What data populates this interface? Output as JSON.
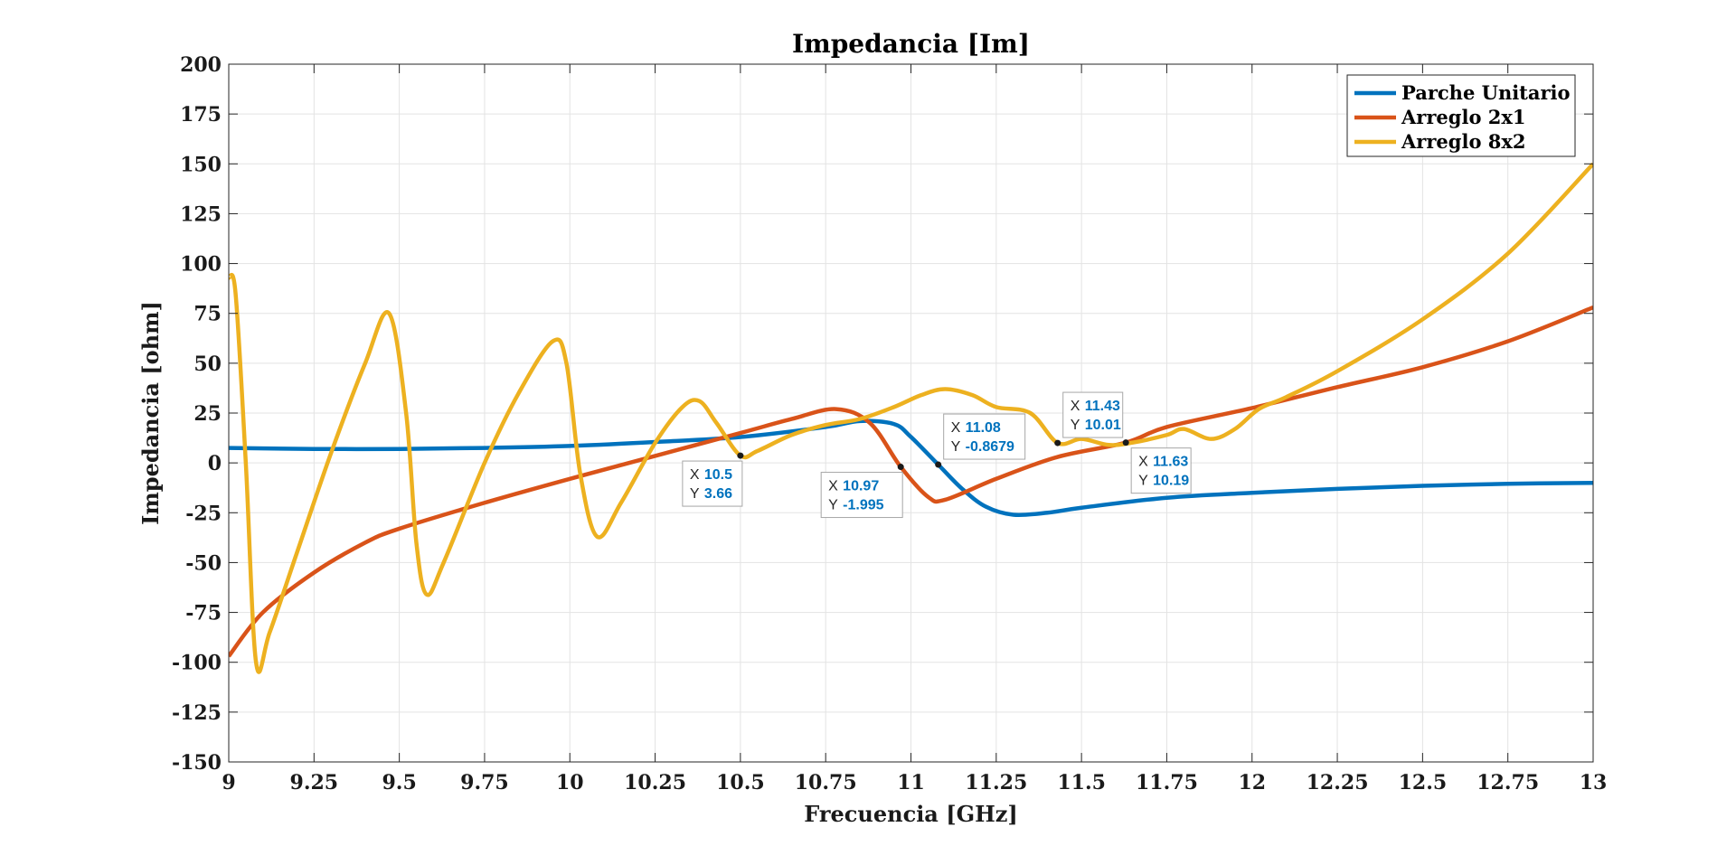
{
  "chart_data": {
    "type": "line",
    "title": "Impedancia [Im]",
    "xlabel": "Frecuencia [GHz]",
    "ylabel": "Impedancia [ohm]",
    "xlim": [
      9,
      13
    ],
    "ylim": [
      -150,
      200
    ],
    "xticks": [
      9,
      9.25,
      9.5,
      9.75,
      10,
      10.25,
      10.5,
      10.75,
      11,
      11.25,
      11.5,
      11.75,
      12,
      12.25,
      12.5,
      12.75,
      13
    ],
    "xtick_labels": [
      "9",
      "9.25",
      "9.5",
      "9.75",
      "10",
      "10.25",
      "10.5",
      "10.75",
      "11",
      "11.25",
      "11.5",
      "11.75",
      "12",
      "12.25",
      "12.5",
      "12.75",
      "13"
    ],
    "yticks": [
      200,
      175,
      150,
      125,
      100,
      75,
      50,
      25,
      0,
      -25,
      -50,
      -75,
      -100,
      -125,
      -150
    ],
    "ytick_labels": [
      "200",
      "175",
      "150",
      "125",
      "100",
      "75",
      "50",
      "25",
      "0",
      "-25",
      "-50",
      "-75",
      "-100",
      "-125",
      "-150"
    ],
    "grid": true,
    "legend_position": "top-right",
    "series": [
      {
        "name": "Parche Unitario",
        "color": "#0072BD",
        "x": [
          9,
          9.25,
          9.5,
          9.75,
          10,
          10.25,
          10.5,
          10.75,
          10.85,
          10.95,
          11.0,
          11.08,
          11.15,
          11.22,
          11.3,
          11.4,
          11.5,
          11.75,
          12,
          12.25,
          12.5,
          12.75,
          13
        ],
        "y": [
          7.5,
          7,
          7,
          7.5,
          8.5,
          10.5,
          13,
          18,
          21,
          19.5,
          13,
          -0.8679,
          -13,
          -22,
          -26,
          -25,
          -22.5,
          -17.5,
          -15,
          -13,
          -11.5,
          -10.5,
          -10
        ]
      },
      {
        "name": "Arreglo 2x1",
        "color": "#D95319",
        "x": [
          9,
          9.1,
          9.25,
          9.4,
          9.5,
          9.75,
          10,
          10.25,
          10.5,
          10.65,
          10.78,
          10.88,
          10.97,
          11.05,
          11.1,
          11.25,
          11.43,
          11.63,
          11.75,
          12,
          12.25,
          12.5,
          12.75,
          13
        ],
        "y": [
          -97,
          -75,
          -55,
          -40,
          -33,
          -20,
          -8,
          3.5,
          15,
          22,
          27,
          20,
          -1.995,
          -17,
          -18.5,
          -8,
          3,
          10.19,
          18,
          27.5,
          38,
          48,
          61,
          78
        ]
      },
      {
        "name": "Arreglo 8x2",
        "color": "#EDB120",
        "x": [
          9,
          9.02,
          9.05,
          9.08,
          9.12,
          9.2,
          9.3,
          9.4,
          9.47,
          9.52,
          9.55,
          9.58,
          9.63,
          9.75,
          9.85,
          9.95,
          9.99,
          10.03,
          10.08,
          10.15,
          10.25,
          10.33,
          10.38,
          10.43,
          10.5,
          10.55,
          10.65,
          10.75,
          10.85,
          10.95,
          11.03,
          11.1,
          11.18,
          11.25,
          11.35,
          11.43,
          11.5,
          11.58,
          11.65,
          11.75,
          11.8,
          11.88,
          11.95,
          12.02,
          12.1,
          12.25,
          12.5,
          12.75,
          13
        ],
        "y": [
          93,
          85,
          0,
          -100,
          -85,
          -45,
          5,
          50,
          75,
          25,
          -40,
          -66,
          -50,
          0,
          35,
          61,
          50,
          -5,
          -37,
          -20,
          10,
          28,
          31,
          20,
          3.66,
          6,
          14,
          19,
          22,
          28,
          34,
          37,
          34,
          28,
          25,
          10.01,
          12,
          9,
          10.19,
          14,
          17,
          12,
          17,
          27,
          33,
          46,
          72,
          105,
          150
        ]
      }
    ],
    "datatips": [
      {
        "x_label": "X",
        "x": "10.5",
        "y_label": "Y",
        "y": "3.66",
        "px": 10.5,
        "py": 3.66,
        "side": "below-left"
      },
      {
        "x_label": "X",
        "x": "10.97",
        "y_label": "Y",
        "y": "-1.995",
        "px": 10.97,
        "py": -1.995,
        "side": "below-left"
      },
      {
        "x_label": "X",
        "x": "11.08",
        "y_label": "Y",
        "y": "-0.8679",
        "px": 11.08,
        "py": -0.8679,
        "side": "above-right"
      },
      {
        "x_label": "X",
        "x": "11.43",
        "y_label": "Y",
        "y": "10.01",
        "px": 11.43,
        "py": 10.01,
        "side": "above-right"
      },
      {
        "x_label": "X",
        "x": "11.63",
        "y_label": "Y",
        "y": "10.19",
        "px": 11.63,
        "py": 10.19,
        "side": "below-right"
      }
    ]
  }
}
